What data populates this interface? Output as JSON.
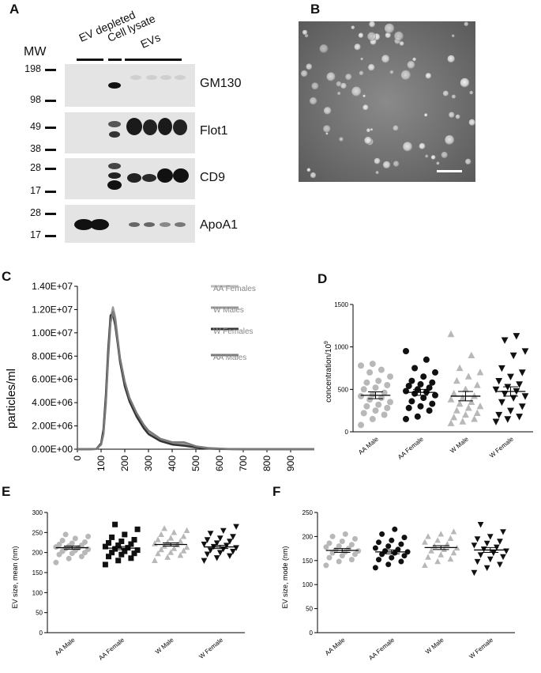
{
  "panel_labels": {
    "a": "A",
    "b": "B",
    "c": "C",
    "d": "D",
    "e": "E",
    "f": "F"
  },
  "blot": {
    "mw_header": "MW",
    "lane_groups": [
      {
        "label": "EV depleted"
      },
      {
        "label": "Cell lysate"
      },
      {
        "label": "EVs"
      }
    ],
    "rows": [
      {
        "protein": "GM130",
        "mw_top": "198",
        "mw_bottom": "98"
      },
      {
        "protein": "Flot1",
        "mw_top": "49",
        "mw_bottom": "38"
      },
      {
        "protein": "CD9",
        "mw_top": "28",
        "mw_bottom": "17"
      },
      {
        "protein": "ApoA1",
        "mw_top": "28",
        "mw_bottom": "17"
      }
    ]
  },
  "chart_data": [
    {
      "panel": "C",
      "type": "line",
      "ylabel": "particles/ml",
      "xlabel": "",
      "x_ticks": [
        "0",
        "100",
        "200",
        "300",
        "400",
        "500",
        "600",
        "700",
        "800",
        "900"
      ],
      "y_ticks": [
        "0.00E+00",
        "2.00E+06",
        "4.00E+06",
        "6.00E+06",
        "8.00E+06",
        "1.00E+07",
        "1.20E+07",
        "1.40E+07"
      ],
      "xlim": [
        0,
        1000
      ],
      "ylim": [
        0,
        14000000
      ],
      "x": [
        0,
        50,
        80,
        100,
        110,
        120,
        130,
        140,
        150,
        160,
        170,
        180,
        200,
        220,
        250,
        280,
        300,
        350,
        400,
        450,
        500,
        550,
        600,
        650,
        700,
        800,
        900,
        1000
      ],
      "series": [
        {
          "name": "AA Females",
          "color": "#bdbdbd",
          "values": [
            0,
            0,
            20000,
            400000,
            1500000,
            4200000,
            8200000,
            11300000,
            12000000,
            11000000,
            9300000,
            7700000,
            5600000,
            4200000,
            2900000,
            1900000,
            1400000,
            800000,
            500000,
            500000,
            200000,
            90000,
            40000,
            10000,
            0,
            0,
            0,
            0
          ]
        },
        {
          "name": "W Males",
          "color": "#9a9a9a",
          "values": [
            0,
            0,
            20000,
            400000,
            1400000,
            4000000,
            8000000,
            11200000,
            12200000,
            11300000,
            9500000,
            7800000,
            5700000,
            4300000,
            3000000,
            2000000,
            1500000,
            800000,
            500000,
            400000,
            200000,
            80000,
            30000,
            10000,
            0,
            0,
            0,
            0
          ]
        },
        {
          "name": "W Females",
          "color": "#333333",
          "values": [
            0,
            0,
            20000,
            500000,
            1700000,
            4600000,
            8600000,
            11500000,
            11600000,
            10600000,
            9100000,
            7500000,
            5400000,
            4100000,
            2800000,
            1800000,
            1300000,
            700000,
            400000,
            300000,
            150000,
            60000,
            20000,
            5000,
            0,
            0,
            0,
            0
          ]
        },
        {
          "name": "AA Males",
          "color": "#7a7a7a",
          "values": [
            0,
            0,
            20000,
            400000,
            1300000,
            3900000,
            7800000,
            10900000,
            11800000,
            11000000,
            9400000,
            7800000,
            5800000,
            4400000,
            3100000,
            2100000,
            1600000,
            900000,
            600000,
            600000,
            250000,
            100000,
            50000,
            10000,
            0,
            0,
            0,
            0
          ]
        }
      ]
    },
    {
      "panel": "D",
      "type": "scatter",
      "ylabel": "concentration/10",
      "ylabel_sup": "9",
      "categories": [
        "AA Male",
        "AA Female",
        "W Male",
        "W Female"
      ],
      "y_ticks": [
        "0",
        "500",
        "1000",
        "1500"
      ],
      "ylim": [
        0,
        1500
      ],
      "marker": [
        "circle",
        "circle",
        "triangle-up",
        "triangle-down"
      ],
      "colors": [
        "#b8b8b8",
        "#111111",
        "#b8b8b8",
        "#111111"
      ],
      "means": [
        430,
        465,
        420,
        475
      ],
      "sem": [
        40,
        35,
        55,
        55
      ],
      "groups": [
        [
          80,
          150,
          200,
          220,
          250,
          280,
          300,
          320,
          350,
          380,
          400,
          420,
          440,
          460,
          500,
          520,
          550,
          580,
          600,
          650,
          700,
          730,
          780,
          800
        ],
        [
          150,
          180,
          250,
          280,
          300,
          330,
          360,
          400,
          430,
          450,
          470,
          480,
          500,
          520,
          540,
          560,
          580,
          600,
          650,
          700,
          750,
          850,
          950
        ],
        [
          100,
          120,
          150,
          170,
          200,
          220,
          250,
          280,
          300,
          330,
          350,
          380,
          400,
          420,
          450,
          500,
          550,
          600,
          650,
          700,
          750,
          900,
          1150
        ],
        [
          120,
          150,
          180,
          200,
          250,
          300,
          350,
          400,
          420,
          450,
          480,
          500,
          530,
          560,
          600,
          650,
          700,
          750,
          900,
          950,
          1080,
          1130
        ]
      ]
    },
    {
      "panel": "E",
      "type": "scatter",
      "ylabel": "EV size, mean (nm)",
      "categories": [
        "AA Male",
        "AA Female",
        "W Male",
        "W Female"
      ],
      "y_ticks": [
        "0",
        "50",
        "100",
        "150",
        "200",
        "250",
        "300"
      ],
      "ylim": [
        0,
        300
      ],
      "marker": [
        "circle",
        "square",
        "triangle-up",
        "triangle-down"
      ],
      "colors": [
        "#b8b8b8",
        "#111111",
        "#b8b8b8",
        "#111111"
      ],
      "means": [
        212,
        211,
        220,
        214
      ],
      "sem": [
        4,
        4,
        4,
        4
      ],
      "groups": [
        [
          175,
          185,
          190,
          195,
          198,
          200,
          203,
          205,
          208,
          210,
          212,
          214,
          216,
          218,
          220,
          223,
          226,
          230,
          235,
          240,
          245
        ],
        [
          170,
          180,
          186,
          190,
          195,
          198,
          200,
          203,
          206,
          209,
          212,
          215,
          218,
          221,
          224,
          228,
          232,
          238,
          245,
          258,
          270
        ],
        [
          180,
          188,
          193,
          197,
          200,
          204,
          207,
          210,
          213,
          216,
          219,
          222,
          225,
          228,
          232,
          236,
          240,
          245,
          250,
          255,
          260
        ],
        [
          180,
          187,
          192,
          196,
          200,
          203,
          206,
          209,
          212,
          215,
          218,
          221,
          224,
          228,
          232,
          236,
          240,
          248,
          255,
          265
        ]
      ]
    },
    {
      "panel": "F",
      "type": "scatter",
      "ylabel": "EV size, mode (nm)",
      "categories": [
        "AA Male",
        "AA Female",
        "W Male",
        "W Female"
      ],
      "y_ticks": [
        "0",
        "50",
        "100",
        "150",
        "200",
        "250"
      ],
      "ylim": [
        0,
        250
      ],
      "marker": [
        "circle",
        "circle",
        "triangle-up",
        "triangle-down"
      ],
      "colors": [
        "#b8b8b8",
        "#111111",
        "#b8b8b8",
        "#111111"
      ],
      "means": [
        171,
        168,
        177,
        172
      ],
      "sem": [
        4,
        4,
        4,
        5
      ],
      "groups": [
        [
          140,
          148,
          152,
          156,
          160,
          163,
          166,
          168,
          170,
          172,
          175,
          178,
          180,
          183,
          186,
          190,
          195,
          200,
          205
        ],
        [
          135,
          142,
          148,
          152,
          156,
          160,
          163,
          166,
          168,
          170,
          173,
          176,
          180,
          184,
          188,
          192,
          198,
          205,
          215
        ],
        [
          140,
          148,
          153,
          157,
          162,
          166,
          170,
          173,
          176,
          180,
          184,
          188,
          192,
          196,
          200,
          205,
          210
        ],
        [
          125,
          135,
          142,
          148,
          153,
          158,
          162,
          166,
          170,
          174,
          178,
          182,
          186,
          190,
          195,
          200,
          210,
          225
        ]
      ]
    }
  ]
}
